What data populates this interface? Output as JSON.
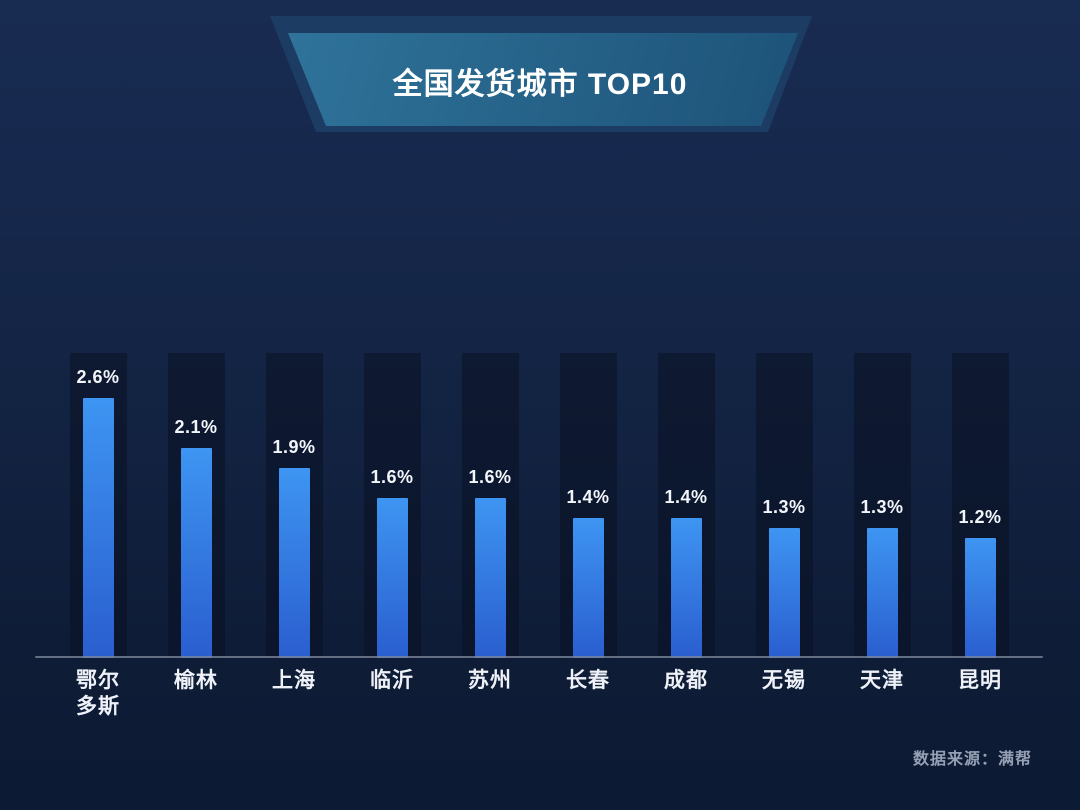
{
  "banner": {
    "title": "全国发货城市 TOP10"
  },
  "source": {
    "label": "数据来源：满帮"
  },
  "chart_data": {
    "type": "bar",
    "title": "全国发货城市 TOP10",
    "categories": [
      "鄂尔多斯",
      "榆林",
      "上海",
      "临沂",
      "苏州",
      "长春",
      "成都",
      "无锡",
      "天津",
      "昆明"
    ],
    "values": [
      2.6,
      2.1,
      1.9,
      1.6,
      1.6,
      1.4,
      1.4,
      1.3,
      1.3,
      1.2
    ],
    "value_labels": [
      "2.6%",
      "2.1%",
      "1.9%",
      "1.6%",
      "1.6%",
      "1.4%",
      "1.4%",
      "1.3%",
      "1.3%",
      "1.2%"
    ],
    "unit": "%",
    "ylim": [
      0,
      3.05
    ],
    "grid": false,
    "legend": false,
    "colors": {
      "bar_top": "#3e95f2",
      "bar_bottom": "#2a5ecf",
      "track": "rgba(6,12,26,0.42)",
      "axis_line": "#7b8599",
      "value_label": "#f2f5fa",
      "category_label": "#eef2f8",
      "source_label": "#96a0b4",
      "banner_back": "#1c3c63",
      "banner_front_start": "#2f739a",
      "banner_front_end": "#1d5278",
      "background_top": "#182b51",
      "background_bottom": "#0d1a33"
    }
  }
}
